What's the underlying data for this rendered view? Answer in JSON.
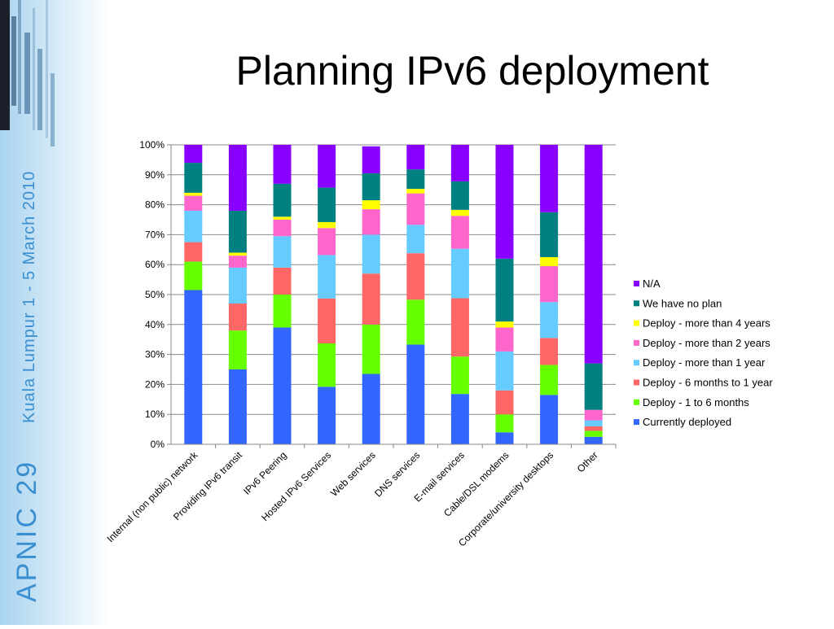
{
  "sidebar": {
    "event_name": "APNIC 29",
    "location_dates": "Kuala Lumpur 1 - 5 March 2010"
  },
  "slide": {
    "title": "Planning IPv6 deployment"
  },
  "chart_data": {
    "type": "bar",
    "stacked": true,
    "percent": true,
    "ylim": [
      0,
      100
    ],
    "yticks": [
      "0%",
      "10%",
      "20%",
      "30%",
      "40%",
      "50%",
      "60%",
      "70%",
      "80%",
      "90%",
      "100%"
    ],
    "grid": true,
    "legend_position": "right",
    "categories": [
      "Internal (non public) network",
      "Providing IPv6 transit",
      "IPv6 Peering",
      "Hosted IPv6 Services",
      "Web services",
      "DNS services",
      "E-mail services",
      "Cable/DSL modems",
      "Corporate/university desktops",
      "Other"
    ],
    "series": [
      {
        "name": "Currently deployed",
        "color": "#3366ff",
        "values": [
          51.5,
          25,
          39,
          19.2,
          23.5,
          33.3,
          16.8,
          4,
          16.5,
          2.5
        ]
      },
      {
        "name": "Deploy - 1 to 6 months",
        "color": "#66ff00",
        "values": [
          9.5,
          13,
          11,
          14.5,
          16.5,
          15,
          12.5,
          6,
          10,
          2
        ]
      },
      {
        "name": "Deploy -  6 months to 1 year",
        "color": "#ff6666",
        "values": [
          6.5,
          9,
          9,
          15,
          17,
          15.5,
          19.5,
          8,
          9,
          1.5
        ]
      },
      {
        "name": "Deploy -  more than 1 year",
        "color": "#66ccff",
        "values": [
          10.5,
          12,
          10.5,
          14.5,
          13,
          9.5,
          16.5,
          13,
          12,
          2
        ]
      },
      {
        "name": "Deploy -  more than 2 years",
        "color": "#ff66cc",
        "values": [
          5,
          4,
          5.5,
          9,
          8.5,
          10.5,
          11,
          8,
          12,
          3.5
        ]
      },
      {
        "name": "Deploy -  more than 4 years",
        "color": "#ffff00",
        "values": [
          1,
          1,
          1,
          2,
          3,
          1.5,
          2,
          2,
          3,
          0
        ]
      },
      {
        "name": "We have no plan",
        "color": "#008080",
        "values": [
          10,
          14,
          11,
          11.5,
          9,
          6.5,
          9.5,
          21,
          15,
          15.5
        ]
      },
      {
        "name": "N/A",
        "color": "#8800ff",
        "values": [
          6,
          22,
          13,
          14.3,
          9,
          8.2,
          12.2,
          38,
          22.5,
          73
        ]
      }
    ]
  }
}
